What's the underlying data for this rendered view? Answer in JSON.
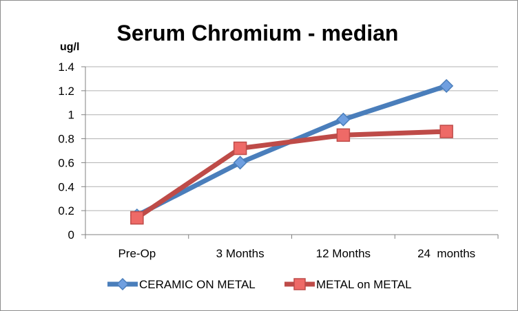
{
  "chart_data": {
    "type": "line",
    "title": "Serum Chromium - median",
    "ylabel": "ug/l",
    "xlabel": "",
    "categories": [
      "Pre-Op",
      "3 Months",
      "12 Months",
      "24  months"
    ],
    "ylim": [
      0,
      1.4
    ],
    "yticks": [
      "0",
      "0.2",
      "0.4",
      "0.6",
      "0.8",
      "1",
      "1.2",
      "1.4"
    ],
    "grid": "horizontal",
    "legend_position": "bottom",
    "series": [
      {
        "name": "CERAMIC ON METAL",
        "values": [
          0.16,
          0.6,
          0.96,
          1.24
        ],
        "color": "#4a7ebb",
        "marker": "diamond",
        "marker_fill": "#6f9fe0"
      },
      {
        "name": "METAL on METAL",
        "values": [
          0.14,
          0.72,
          0.83,
          0.86
        ],
        "color": "#be4b48",
        "marker": "square",
        "marker_fill": "#ee6a67"
      }
    ]
  }
}
